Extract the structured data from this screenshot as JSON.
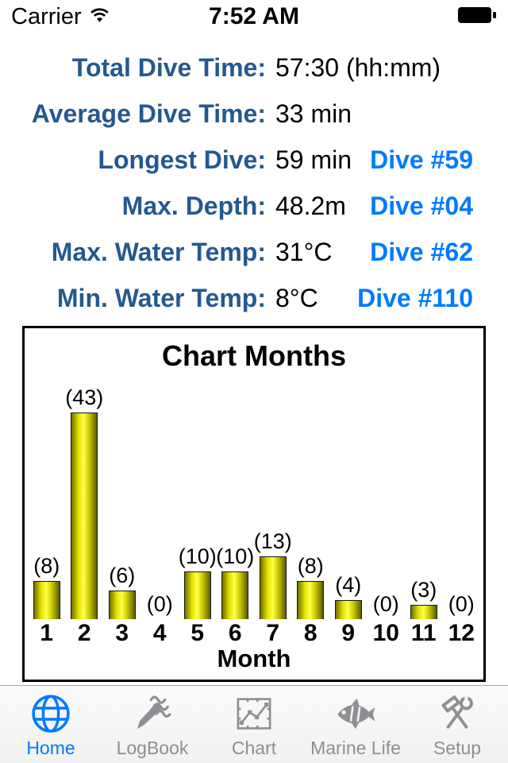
{
  "status_bar": {
    "carrier": "Carrier",
    "time": "7:52 AM",
    "wifi_icon": "wifi-icon",
    "battery_icon": "battery-full-icon"
  },
  "stats": {
    "rows": [
      {
        "label": "Total Dive Time:",
        "value": "57:30 (hh:mm)"
      },
      {
        "label": "Average Dive Time:",
        "value": "33 min"
      },
      {
        "label": "Longest Dive:",
        "value": "59 min",
        "link": "Dive #59"
      },
      {
        "label": "Max. Depth:",
        "value": "48.2m",
        "link": "Dive #04"
      },
      {
        "label": "Max. Water Temp:",
        "value": "31°C",
        "link": "Dive #62"
      },
      {
        "label": "Min. Water Temp:",
        "value": "8°C",
        "link": "Dive #110"
      }
    ]
  },
  "chart_data": {
    "type": "bar",
    "title": "Chart Months",
    "categories": [
      "1",
      "2",
      "3",
      "4",
      "5",
      "6",
      "7",
      "8",
      "9",
      "10",
      "11",
      "12"
    ],
    "values": [
      8,
      43,
      6,
      0,
      10,
      10,
      13,
      8,
      4,
      0,
      3,
      0
    ],
    "xlabel": "Month",
    "ylabel": "",
    "ylim": [
      0,
      45
    ],
    "grid": false,
    "legend": false,
    "bar_color": "#e8e800",
    "value_label_format": "({value})"
  },
  "tab_bar": {
    "active_color": "#007aff",
    "inactive_color": "#8f8f94",
    "items": [
      {
        "label": "Home",
        "icon": "globe-icon",
        "active": true
      },
      {
        "label": "LogBook",
        "icon": "logbook-icon",
        "active": false
      },
      {
        "label": "Chart",
        "icon": "chart-icon",
        "active": false
      },
      {
        "label": "Marine Life",
        "icon": "fish-icon",
        "active": false
      },
      {
        "label": "Setup",
        "icon": "tools-icon",
        "active": false
      }
    ]
  },
  "colors": {
    "label_blue": "#24598f",
    "link_blue": "#007aff",
    "chart_border": "#000000"
  }
}
